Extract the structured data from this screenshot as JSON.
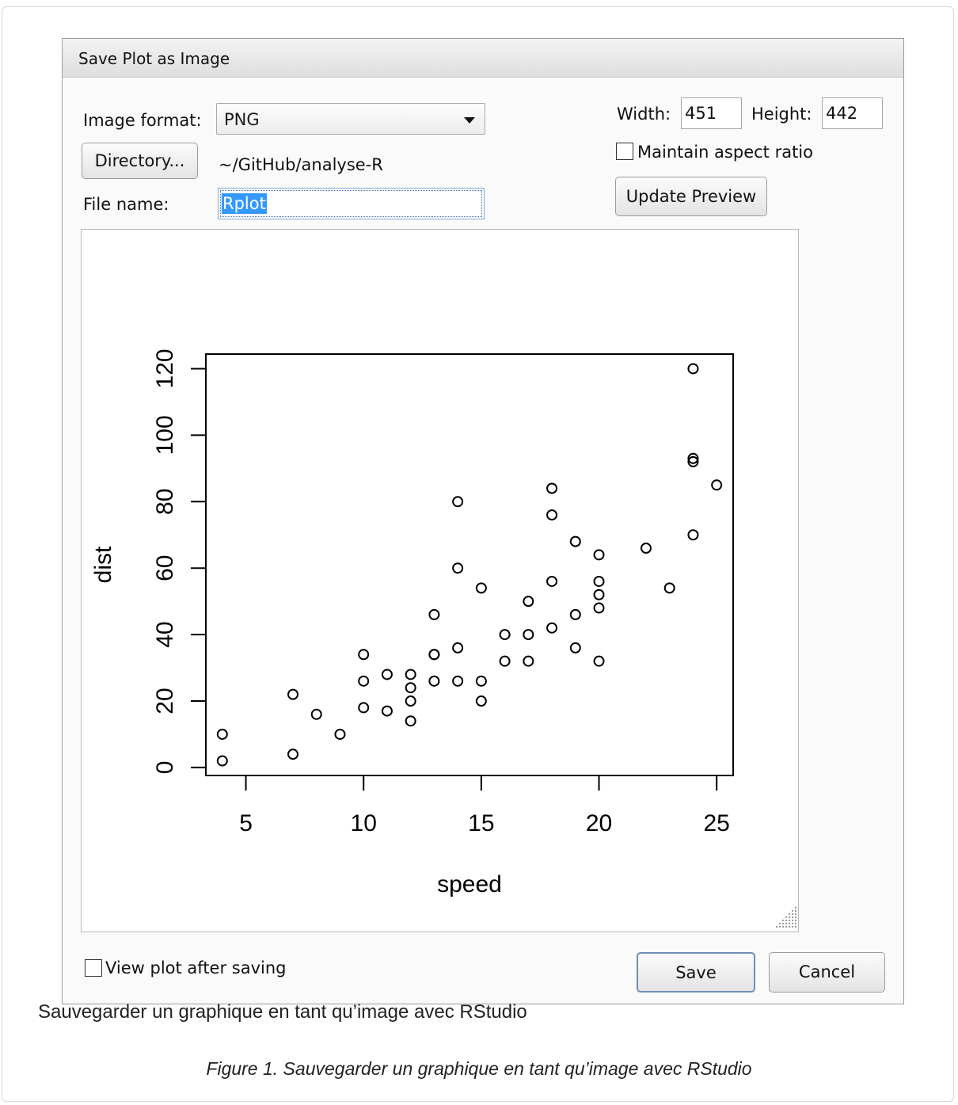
{
  "dialog": {
    "title": "Save Plot as Image",
    "image_format_label": "Image format:",
    "image_format_value": "PNG",
    "directory_button": "Directory...",
    "directory_path": "~/GitHub/analyse-R",
    "file_name_label": "File name:",
    "file_name_value": "Rplot",
    "width_label": "Width:",
    "width_value": "451",
    "height_label": "Height:",
    "height_value": "442",
    "maintain_aspect_label": "Maintain aspect ratio",
    "maintain_aspect_checked": false,
    "update_preview_button": "Update Preview",
    "view_after_saving_label": "View plot after saving",
    "view_after_saving_checked": false,
    "save_button": "Save",
    "cancel_button": "Cancel"
  },
  "caption": "Sauvegarder un graphique en tant qu’image avec RStudio",
  "figure_caption": "Figure 1. Sauvegarder un graphique en tant qu’image avec RStudio",
  "chart_data": {
    "type": "scatter",
    "xlabel": "speed",
    "ylabel": "dist",
    "xlim": [
      3.3,
      25.7
    ],
    "ylim": [
      -2.4,
      124.4
    ],
    "xticks": [
      "5",
      "10",
      "15",
      "20",
      "25"
    ],
    "yticks": [
      "0",
      "20",
      "40",
      "60",
      "80",
      "100",
      "120"
    ],
    "grid": false,
    "points": [
      [
        4,
        2
      ],
      [
        4,
        10
      ],
      [
        7,
        4
      ],
      [
        7,
        22
      ],
      [
        8,
        16
      ],
      [
        9,
        10
      ],
      [
        10,
        18
      ],
      [
        10,
        26
      ],
      [
        10,
        34
      ],
      [
        11,
        17
      ],
      [
        11,
        28
      ],
      [
        12,
        14
      ],
      [
        12,
        20
      ],
      [
        12,
        24
      ],
      [
        12,
        28
      ],
      [
        13,
        26
      ],
      [
        13,
        34
      ],
      [
        13,
        34
      ],
      [
        13,
        46
      ],
      [
        14,
        26
      ],
      [
        14,
        36
      ],
      [
        14,
        60
      ],
      [
        14,
        80
      ],
      [
        15,
        20
      ],
      [
        15,
        26
      ],
      [
        15,
        54
      ],
      [
        16,
        32
      ],
      [
        16,
        40
      ],
      [
        17,
        32
      ],
      [
        17,
        40
      ],
      [
        17,
        50
      ],
      [
        18,
        42
      ],
      [
        18,
        56
      ],
      [
        18,
        76
      ],
      [
        18,
        84
      ],
      [
        19,
        36
      ],
      [
        19,
        46
      ],
      [
        19,
        68
      ],
      [
        20,
        32
      ],
      [
        20,
        48
      ],
      [
        20,
        52
      ],
      [
        20,
        56
      ],
      [
        20,
        64
      ],
      [
        22,
        66
      ],
      [
        23,
        54
      ],
      [
        24,
        70
      ],
      [
        24,
        92
      ],
      [
        24,
        93
      ],
      [
        24,
        120
      ],
      [
        25,
        85
      ]
    ]
  }
}
